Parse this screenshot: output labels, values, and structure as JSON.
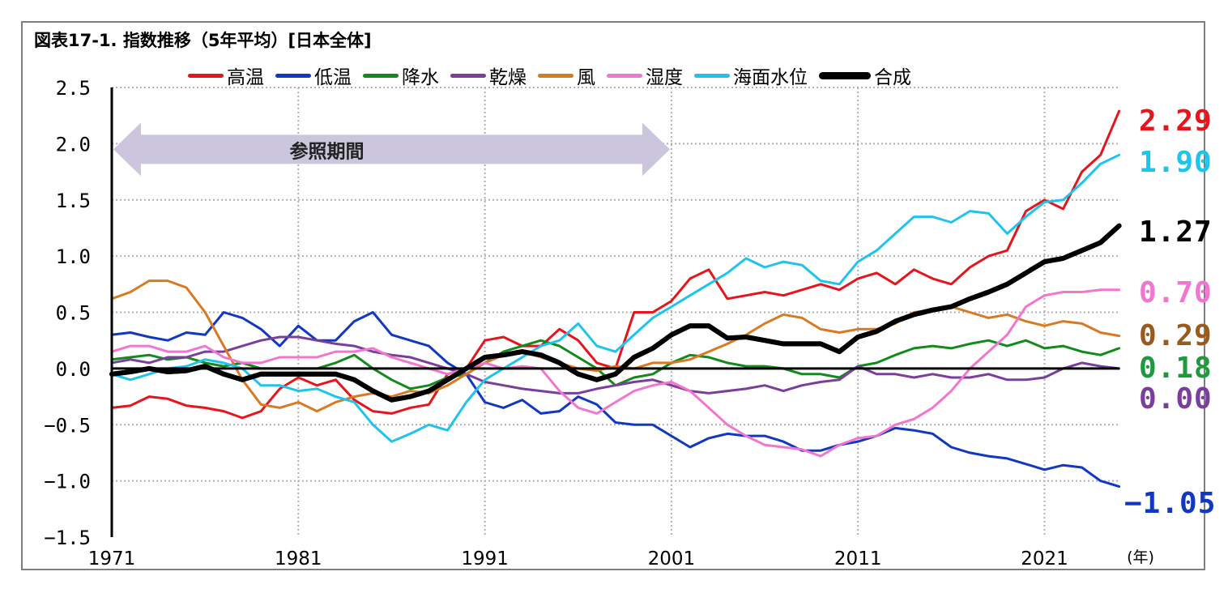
{
  "title": "図表17-1. 指数推移（5年平均）[日本全体]",
  "colors": {
    "高温": "#e8141c",
    "低温": "#1038c0",
    "降水": "#138a1c",
    "乾燥": "#7a3f9c",
    "風": "#d97a22",
    "湿度": "#f276cf",
    "海面水位": "#1ec4ec",
    "合成": "#000000"
  },
  "chart_data": {
    "type": "line",
    "title": "図表17-1. 指数推移（5年平均）[日本全体]",
    "xlabel": "(年)",
    "ylabel": "",
    "xlim": [
      1971,
      2025
    ],
    "ylim": [
      -1.5,
      2.5
    ],
    "grid": true,
    "legend_placement": "top",
    "x_ticks": [
      "1971",
      "1981",
      "1991",
      "2001",
      "2011",
      "2021"
    ],
    "y_ticks": [
      "2.5",
      "2.0",
      "1.5",
      "1.0",
      "0.5",
      "0.0",
      "−0.5",
      "−1.0",
      "−1.5"
    ],
    "annotation": {
      "text": "参照期間",
      "x_start": 1971,
      "x_end": 2001,
      "y": 1.95
    },
    "series": [
      {
        "name": "高温",
        "color": "#e8141c",
        "end_label": "2.29",
        "x": [
          1971,
          1972,
          1973,
          1974,
          1975,
          1976,
          1977,
          1978,
          1979,
          1980,
          1981,
          1982,
          1983,
          1984,
          1985,
          1986,
          1987,
          1988,
          1989,
          1990,
          1991,
          1992,
          1993,
          1994,
          1995,
          1996,
          1997,
          1998,
          1999,
          2000,
          2001,
          2002,
          2003,
          2004,
          2005,
          2006,
          2007,
          2008,
          2009,
          2010,
          2011,
          2012,
          2013,
          2014,
          2015,
          2016,
          2017,
          2018,
          2019,
          2020,
          2021,
          2022,
          2023,
          2024,
          2025
        ],
        "values": [
          -0.35,
          -0.33,
          -0.25,
          -0.27,
          -0.33,
          -0.35,
          -0.38,
          -0.44,
          -0.38,
          -0.18,
          -0.08,
          -0.15,
          -0.1,
          -0.28,
          -0.38,
          -0.4,
          -0.35,
          -0.32,
          -0.05,
          0.0,
          0.25,
          0.28,
          0.2,
          0.2,
          0.35,
          0.25,
          0.05,
          0.0,
          0.5,
          0.5,
          0.6,
          0.8,
          0.88,
          0.62,
          0.65,
          0.68,
          0.65,
          0.7,
          0.75,
          0.7,
          0.8,
          0.85,
          0.75,
          0.88,
          0.8,
          0.75,
          0.9,
          1.0,
          1.05,
          1.4,
          1.5,
          1.42,
          1.75,
          1.9,
          2.29
        ]
      },
      {
        "name": "低温",
        "color": "#1038c0",
        "end_label": "−1.05",
        "x": [
          1971,
          1972,
          1973,
          1974,
          1975,
          1976,
          1977,
          1978,
          1979,
          1980,
          1981,
          1982,
          1983,
          1984,
          1985,
          1986,
          1987,
          1988,
          1989,
          1990,
          1991,
          1992,
          1993,
          1994,
          1995,
          1996,
          1997,
          1998,
          1999,
          2000,
          2001,
          2002,
          2003,
          2004,
          2005,
          2006,
          2007,
          2008,
          2009,
          2010,
          2011,
          2012,
          2013,
          2014,
          2015,
          2016,
          2017,
          2018,
          2019,
          2020,
          2021,
          2022,
          2023,
          2024,
          2025
        ],
        "values": [
          0.3,
          0.32,
          0.28,
          0.25,
          0.32,
          0.3,
          0.5,
          0.45,
          0.35,
          0.2,
          0.38,
          0.25,
          0.25,
          0.42,
          0.5,
          0.3,
          0.25,
          0.2,
          0.05,
          -0.05,
          -0.3,
          -0.35,
          -0.28,
          -0.4,
          -0.38,
          -0.25,
          -0.32,
          -0.48,
          -0.5,
          -0.5,
          -0.6,
          -0.7,
          -0.62,
          -0.58,
          -0.6,
          -0.6,
          -0.65,
          -0.73,
          -0.73,
          -0.68,
          -0.65,
          -0.6,
          -0.53,
          -0.55,
          -0.58,
          -0.7,
          -0.75,
          -0.78,
          -0.8,
          -0.85,
          -0.9,
          -0.86,
          -0.88,
          -1.0,
          -1.05
        ]
      },
      {
        "name": "降水",
        "color": "#138a1c",
        "end_label": "0.18",
        "x": [
          1971,
          1972,
          1973,
          1974,
          1975,
          1976,
          1977,
          1978,
          1979,
          1980,
          1981,
          1982,
          1983,
          1984,
          1985,
          1986,
          1987,
          1988,
          1989,
          1990,
          1991,
          1992,
          1993,
          1994,
          1995,
          1996,
          1997,
          1998,
          1999,
          2000,
          2001,
          2002,
          2003,
          2004,
          2005,
          2006,
          2007,
          2008,
          2009,
          2010,
          2011,
          2012,
          2013,
          2014,
          2015,
          2016,
          2017,
          2018,
          2019,
          2020,
          2021,
          2022,
          2023,
          2024,
          2025
        ],
        "values": [
          0.08,
          0.1,
          0.12,
          0.08,
          0.1,
          0.05,
          0.02,
          0.05,
          0.0,
          0.0,
          0.0,
          0.0,
          0.05,
          0.12,
          0.0,
          -0.1,
          -0.18,
          -0.15,
          -0.08,
          -0.05,
          0.05,
          0.15,
          0.2,
          0.25,
          0.2,
          0.1,
          0.0,
          -0.15,
          -0.08,
          -0.05,
          0.05,
          0.12,
          0.1,
          0.05,
          0.02,
          0.02,
          0.0,
          -0.05,
          -0.05,
          -0.08,
          0.02,
          0.05,
          0.12,
          0.18,
          0.2,
          0.18,
          0.22,
          0.25,
          0.2,
          0.25,
          0.18,
          0.2,
          0.15,
          0.12,
          0.18
        ]
      },
      {
        "name": "乾燥",
        "color": "#7a3f9c",
        "end_label": "0.00",
        "x": [
          1971,
          1972,
          1973,
          1974,
          1975,
          1976,
          1977,
          1978,
          1979,
          1980,
          1981,
          1982,
          1983,
          1984,
          1985,
          1986,
          1987,
          1988,
          1989,
          1990,
          1991,
          1992,
          1993,
          1994,
          1995,
          1996,
          1997,
          1998,
          1999,
          2000,
          2001,
          2002,
          2003,
          2004,
          2005,
          2006,
          2007,
          2008,
          2009,
          2010,
          2011,
          2012,
          2013,
          2014,
          2015,
          2016,
          2017,
          2018,
          2019,
          2020,
          2021,
          2022,
          2023,
          2024,
          2025
        ],
        "values": [
          0.05,
          0.08,
          0.05,
          0.1,
          0.1,
          0.15,
          0.15,
          0.2,
          0.25,
          0.28,
          0.28,
          0.25,
          0.22,
          0.2,
          0.15,
          0.12,
          0.1,
          0.05,
          0.0,
          -0.05,
          -0.12,
          -0.15,
          -0.18,
          -0.2,
          -0.22,
          -0.22,
          -0.18,
          -0.15,
          -0.12,
          -0.1,
          -0.15,
          -0.2,
          -0.22,
          -0.2,
          -0.18,
          -0.15,
          -0.2,
          -0.15,
          -0.12,
          -0.1,
          0.02,
          -0.05,
          -0.05,
          -0.08,
          -0.05,
          -0.08,
          -0.08,
          -0.05,
          -0.1,
          -0.1,
          -0.08,
          0.0,
          0.05,
          0.02,
          0.0
        ]
      },
      {
        "name": "風",
        "color": "#d97a22",
        "end_label": "0.29",
        "x": [
          1971,
          1972,
          1973,
          1974,
          1975,
          1976,
          1977,
          1978,
          1979,
          1980,
          1981,
          1982,
          1983,
          1984,
          1985,
          1986,
          1987,
          1988,
          1989,
          1990,
          1991,
          1992,
          1993,
          1994,
          1995,
          1996,
          1997,
          1998,
          1999,
          2000,
          2001,
          2002,
          2003,
          2004,
          2005,
          2006,
          2007,
          2008,
          2009,
          2010,
          2011,
          2012,
          2013,
          2014,
          2015,
          2016,
          2017,
          2018,
          2019,
          2020,
          2021,
          2022,
          2023,
          2024,
          2025
        ],
        "values": [
          0.62,
          0.68,
          0.78,
          0.78,
          0.72,
          0.5,
          0.2,
          -0.1,
          -0.32,
          -0.35,
          -0.3,
          -0.38,
          -0.3,
          -0.25,
          -0.22,
          -0.25,
          -0.2,
          -0.22,
          -0.15,
          -0.05,
          0.05,
          0.12,
          0.15,
          0.1,
          0.05,
          0.0,
          -0.02,
          0.02,
          0.0,
          0.05,
          0.05,
          0.08,
          0.15,
          0.22,
          0.3,
          0.4,
          0.48,
          0.45,
          0.35,
          0.32,
          0.35,
          0.35,
          0.4,
          0.5,
          0.52,
          0.55,
          0.5,
          0.45,
          0.48,
          0.42,
          0.38,
          0.42,
          0.4,
          0.32,
          0.29
        ]
      },
      {
        "name": "湿度",
        "color": "#f276cf",
        "end_label": "0.70",
        "x": [
          1971,
          1972,
          1973,
          1974,
          1975,
          1976,
          1977,
          1978,
          1979,
          1980,
          1981,
          1982,
          1983,
          1984,
          1985,
          1986,
          1987,
          1988,
          1989,
          1990,
          1991,
          1992,
          1993,
          1994,
          1995,
          1996,
          1997,
          1998,
          1999,
          2000,
          2001,
          2002,
          2003,
          2004,
          2005,
          2006,
          2007,
          2008,
          2009,
          2010,
          2011,
          2012,
          2013,
          2014,
          2015,
          2016,
          2017,
          2018,
          2019,
          2020,
          2021,
          2022,
          2023,
          2024,
          2025
        ],
        "values": [
          0.15,
          0.2,
          0.2,
          0.15,
          0.15,
          0.2,
          0.1,
          0.05,
          0.05,
          0.1,
          0.1,
          0.1,
          0.15,
          0.15,
          0.18,
          0.1,
          0.05,
          0.0,
          -0.05,
          0.0,
          0.05,
          0.0,
          0.02,
          0.0,
          -0.2,
          -0.35,
          -0.4,
          -0.3,
          -0.2,
          -0.15,
          -0.12,
          -0.2,
          -0.35,
          -0.5,
          -0.6,
          -0.68,
          -0.7,
          -0.72,
          -0.78,
          -0.68,
          -0.62,
          -0.6,
          -0.5,
          -0.45,
          -0.35,
          -0.2,
          0.0,
          0.15,
          0.3,
          0.55,
          0.65,
          0.68,
          0.68,
          0.7,
          0.7
        ]
      },
      {
        "name": "海面水位",
        "color": "#1ec4ec",
        "end_label": "1.90",
        "x": [
          1971,
          1972,
          1973,
          1974,
          1975,
          1976,
          1977,
          1978,
          1979,
          1980,
          1981,
          1982,
          1983,
          1984,
          1985,
          1986,
          1987,
          1988,
          1989,
          1990,
          1991,
          1992,
          1993,
          1994,
          1995,
          1996,
          1997,
          1998,
          1999,
          2000,
          2001,
          2002,
          2003,
          2004,
          2005,
          2006,
          2007,
          2008,
          2009,
          2010,
          2011,
          2012,
          2013,
          2014,
          2015,
          2016,
          2017,
          2018,
          2019,
          2020,
          2021,
          2022,
          2023,
          2024,
          2025
        ],
        "values": [
          -0.05,
          -0.1,
          -0.05,
          0.0,
          0.02,
          0.08,
          0.05,
          0.0,
          -0.15,
          -0.15,
          -0.2,
          -0.18,
          -0.25,
          -0.3,
          -0.5,
          -0.65,
          -0.58,
          -0.5,
          -0.55,
          -0.3,
          -0.1,
          0.0,
          0.1,
          0.2,
          0.25,
          0.4,
          0.2,
          0.15,
          0.3,
          0.45,
          0.55,
          0.65,
          0.75,
          0.85,
          0.98,
          0.9,
          0.95,
          0.92,
          0.78,
          0.75,
          0.95,
          1.05,
          1.2,
          1.35,
          1.35,
          1.3,
          1.4,
          1.38,
          1.2,
          1.35,
          1.48,
          1.5,
          1.65,
          1.82,
          1.9
        ]
      },
      {
        "name": "合成",
        "color": "#000000",
        "end_label": "1.27",
        "x": [
          1971,
          1972,
          1973,
          1974,
          1975,
          1976,
          1977,
          1978,
          1979,
          1980,
          1981,
          1982,
          1983,
          1984,
          1985,
          1986,
          1987,
          1988,
          1989,
          1990,
          1991,
          1992,
          1993,
          1994,
          1995,
          1996,
          1997,
          1998,
          1999,
          2000,
          2001,
          2002,
          2003,
          2004,
          2005,
          2006,
          2007,
          2008,
          2009,
          2010,
          2011,
          2012,
          2013,
          2014,
          2015,
          2016,
          2017,
          2018,
          2019,
          2020,
          2021,
          2022,
          2023,
          2024,
          2025
        ],
        "values": [
          -0.05,
          -0.03,
          0.0,
          -0.03,
          -0.02,
          0.02,
          -0.05,
          -0.1,
          -0.05,
          -0.05,
          -0.05,
          -0.05,
          -0.05,
          -0.1,
          -0.2,
          -0.28,
          -0.25,
          -0.2,
          -0.1,
          0.0,
          0.1,
          0.12,
          0.15,
          0.12,
          0.05,
          -0.05,
          -0.1,
          -0.05,
          0.1,
          0.18,
          0.3,
          0.38,
          0.38,
          0.27,
          0.28,
          0.25,
          0.22,
          0.22,
          0.22,
          0.15,
          0.28,
          0.33,
          0.42,
          0.48,
          0.52,
          0.55,
          0.62,
          0.68,
          0.75,
          0.85,
          0.95,
          0.98,
          1.05,
          1.12,
          1.27
        ]
      }
    ]
  }
}
